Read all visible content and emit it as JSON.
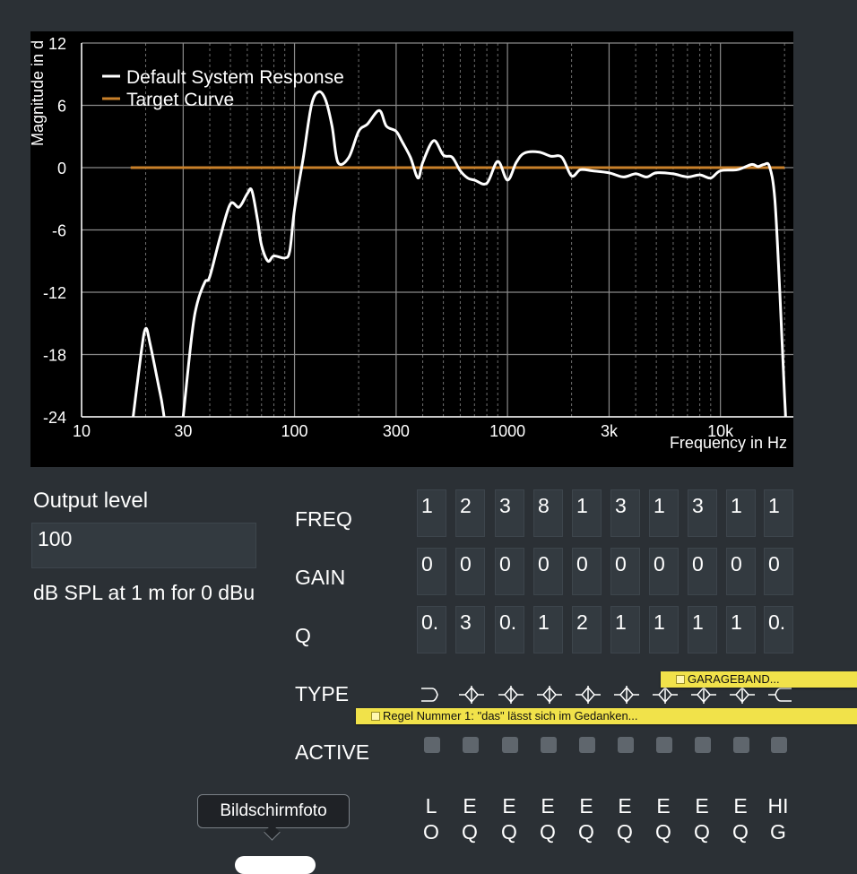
{
  "chart_data": {
    "type": "line",
    "xlabel": "Frequency in Hz",
    "ylabel": "Magnitude in d",
    "x_scale": "log",
    "xlim": [
      10,
      22000
    ],
    "ylim": [
      -24,
      12
    ],
    "x_ticks": [
      10,
      30,
      100,
      300,
      1000,
      3000,
      10000
    ],
    "x_tick_labels": [
      "10",
      "30",
      "100",
      "300",
      "1000",
      "3k",
      "10k"
    ],
    "y_ticks": [
      12,
      6,
      0,
      -6,
      -12,
      -18,
      -24
    ],
    "y_tick_labels": [
      "12",
      "6",
      "0",
      "-6",
      "-12",
      "-18",
      "-24"
    ],
    "grid": true,
    "legend_position": "top-left",
    "series": [
      {
        "name": "Default System Response",
        "color": "#ffffff",
        "x": [
          17,
          19,
          20,
          21,
          23,
          24,
          25,
          26,
          28,
          30,
          33,
          35,
          38,
          40,
          45,
          50,
          55,
          60,
          63,
          67,
          70,
          75,
          80,
          90,
          95,
          100,
          110,
          120,
          130,
          140,
          150,
          160,
          180,
          200,
          220,
          250,
          270,
          300,
          320,
          350,
          380,
          400,
          450,
          500,
          550,
          600,
          650,
          700,
          800,
          900,
          1000,
          1100,
          1200,
          1400,
          1600,
          1800,
          2000,
          2200,
          2500,
          3000,
          3500,
          4000,
          4500,
          5000,
          6000,
          7000,
          8000,
          9000,
          10000,
          12000,
          14000,
          15000,
          16000,
          17000,
          18000,
          19000,
          20000,
          21000
        ],
        "values": [
          -26,
          -18,
          -15.5,
          -17,
          -21,
          -23,
          -26,
          -32,
          -30,
          -24,
          -16,
          -13,
          -11,
          -10.5,
          -6.5,
          -3.5,
          -3.8,
          -2.5,
          -2.2,
          -5,
          -7.5,
          -9,
          -8.5,
          -8.7,
          -8,
          -4,
          1,
          6,
          7.3,
          6.5,
          4,
          0.5,
          1,
          3.5,
          4.2,
          5.5,
          4,
          3.5,
          2.5,
          1,
          -1,
          0.5,
          2.6,
          1.2,
          1,
          -0.3,
          -1,
          -1.2,
          -1.5,
          0.6,
          -1.2,
          0.5,
          1.4,
          1.5,
          1.1,
          1.0,
          -0.8,
          -0.2,
          -0.3,
          -0.5,
          -0.9,
          -0.6,
          -0.9,
          -0.5,
          -0.6,
          -0.9,
          -0.7,
          -1.0,
          -0.3,
          -0.2,
          0.3,
          0.1,
          0.3,
          0.1,
          -3,
          -12,
          -22,
          -30
        ]
      },
      {
        "name": "Target Curve",
        "color": "#c8802a",
        "x": [
          17,
          20000
        ],
        "values": [
          0,
          0
        ]
      }
    ]
  },
  "output_level": {
    "label": "Output level",
    "value": "100",
    "unit": "dB SPL at 1 m for 0 dBu"
  },
  "eq": {
    "row_labels": {
      "freq": "FREQ",
      "gain": "GAIN",
      "q": "Q",
      "type": "TYPE",
      "active": "ACTIVE"
    },
    "bands": [
      {
        "freq": "1",
        "gain": "0",
        "q": "0.",
        "type_icon": "low-cut-icon",
        "type_label_1": "L",
        "type_label_2": "O"
      },
      {
        "freq": "2",
        "gain": "0",
        "q": "3",
        "type_icon": "peaking-eq-icon",
        "type_label_1": "E",
        "type_label_2": "Q"
      },
      {
        "freq": "3",
        "gain": "0",
        "q": "0.",
        "type_icon": "peaking-eq-icon",
        "type_label_1": "E",
        "type_label_2": "Q"
      },
      {
        "freq": "8",
        "gain": "0",
        "q": "1",
        "type_icon": "peaking-eq-icon",
        "type_label_1": "E",
        "type_label_2": "Q"
      },
      {
        "freq": "1",
        "gain": "0",
        "q": "2",
        "type_icon": "peaking-eq-icon",
        "type_label_1": "E",
        "type_label_2": "Q"
      },
      {
        "freq": "3",
        "gain": "0",
        "q": "1",
        "type_icon": "peaking-eq-icon",
        "type_label_1": "E",
        "type_label_2": "Q"
      },
      {
        "freq": "1",
        "gain": "0",
        "q": "1",
        "type_icon": "peaking-eq-icon",
        "type_label_1": "E",
        "type_label_2": "Q"
      },
      {
        "freq": "3",
        "gain": "0",
        "q": "1",
        "type_icon": "peaking-eq-icon",
        "type_label_1": "E",
        "type_label_2": "Q"
      },
      {
        "freq": "1",
        "gain": "0",
        "q": "1",
        "type_icon": "peaking-eq-icon",
        "type_label_1": "E",
        "type_label_2": "Q"
      },
      {
        "freq": "1",
        "gain": "0",
        "q": "0.",
        "type_icon": "high-cut-icon",
        "type_label_1": "HI",
        "type_label_2": "G"
      }
    ]
  },
  "notes": {
    "garageband": "GARAGEBAND...",
    "regel": "Regel Nummer 1: \"das\" lässt sich im Gedanken..."
  },
  "tooltip": {
    "text": "Bildschirmfoto"
  }
}
